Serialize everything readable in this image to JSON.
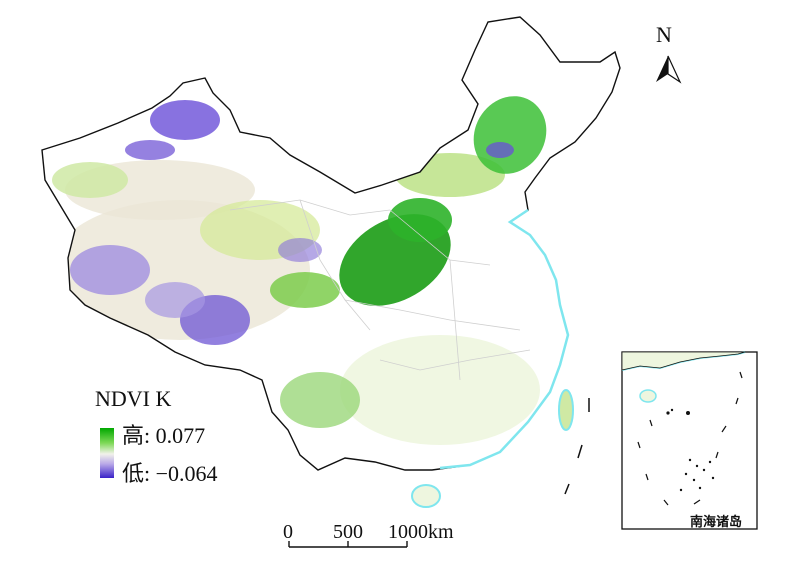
{
  "legend": {
    "title": "NDVI K",
    "high_label": "高: 0.077",
    "low_label": "低: −0.064",
    "colors": {
      "high": "#00a800",
      "mid": "#f2f2ea",
      "low": "#3a22c8"
    }
  },
  "north_arrow": {
    "label": "N"
  },
  "scale_bar": {
    "ticks": [
      "0",
      "500",
      "1000km"
    ]
  },
  "inset": {
    "label": "南海诸岛"
  },
  "map_colors": {
    "boundary": "#111111",
    "coast": "#7fe6ee",
    "province_lines": "#cfcfcf"
  }
}
